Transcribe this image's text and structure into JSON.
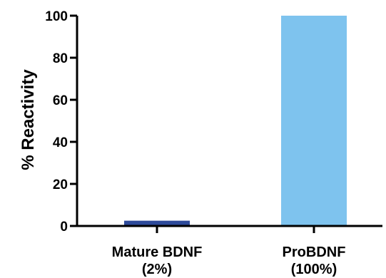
{
  "chart_data": {
    "type": "bar",
    "title": "",
    "xlabel": "",
    "ylabel": "% Reactivity",
    "ylim": [
      0,
      100
    ],
    "yticks": [
      0,
      20,
      40,
      60,
      80,
      100
    ],
    "grid": false,
    "categories": [
      {
        "name": "Mature BDNF",
        "sub": "(2%)"
      },
      {
        "name": "ProBDNF",
        "sub": "(100%)"
      }
    ],
    "values": [
      2.5,
      100
    ],
    "colors": [
      "#2e4a9a",
      "#7ec3ee"
    ],
    "axis_color": "#000000"
  }
}
